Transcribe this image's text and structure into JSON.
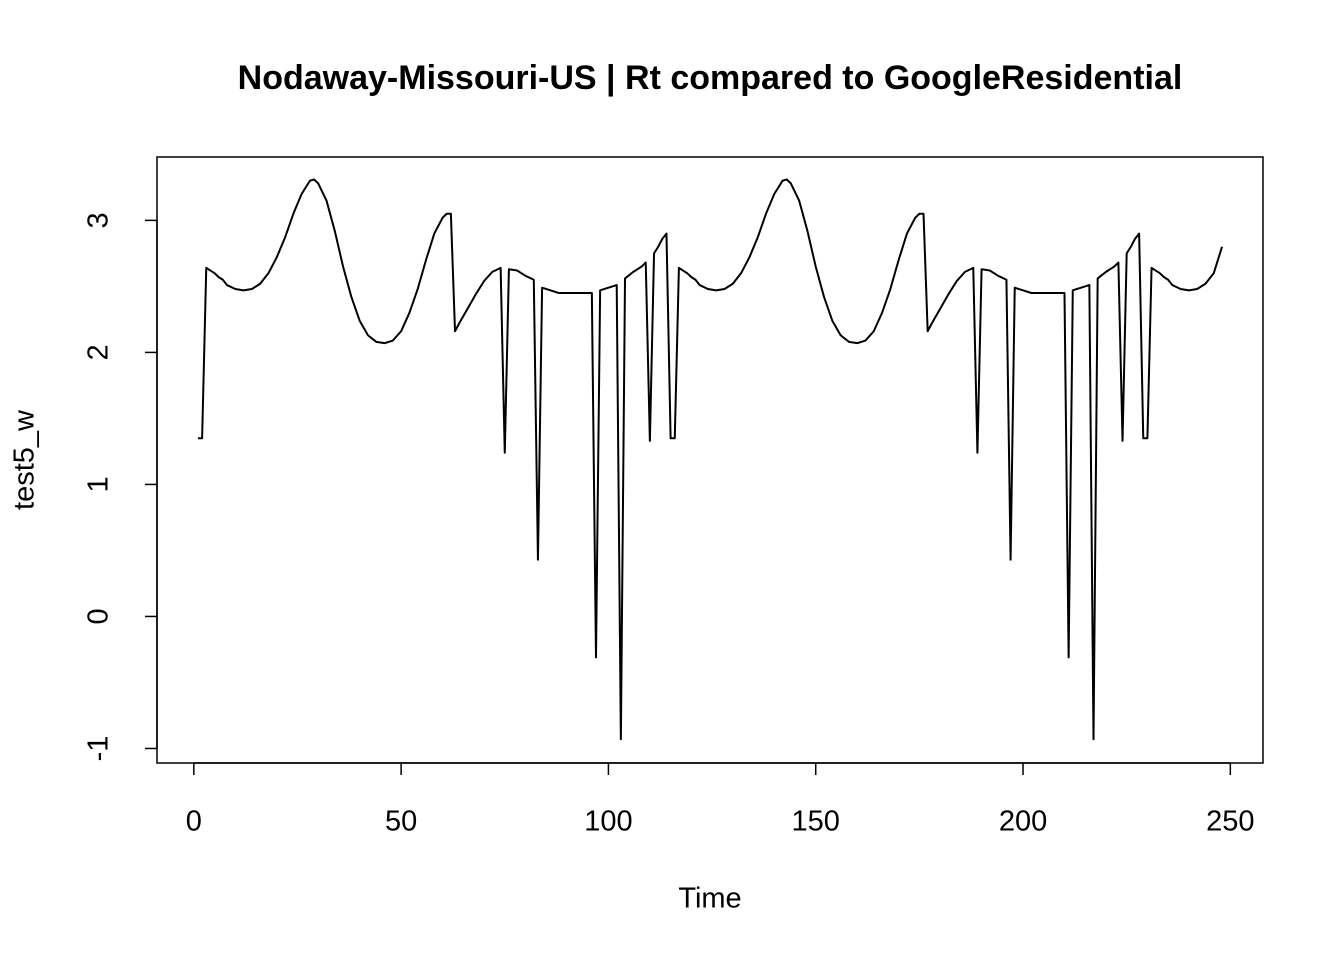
{
  "chart_data": {
    "type": "line",
    "title": "Nodaway-Missouri-US | Rt compared to GoogleResidential",
    "x_label": "Time",
    "y_label": "test5_w",
    "xlim": [
      -8.88,
      257.88
    ],
    "ylim": [
      -1.11,
      3.48
    ],
    "xticks": [
      0,
      50,
      100,
      150,
      200,
      250
    ],
    "yticks": [
      -1,
      0,
      1,
      2,
      3
    ],
    "series": [
      {
        "color": "#000000",
        "x": [
          1,
          2,
          3,
          4,
          5,
          6,
          7,
          8,
          10,
          12,
          14,
          16,
          18,
          20,
          22,
          24,
          26,
          28,
          29,
          30,
          32,
          34,
          36,
          38,
          40,
          42,
          44,
          46,
          48,
          50,
          52,
          54,
          56,
          58,
          60,
          61,
          62,
          63,
          64,
          66,
          68,
          70,
          72,
          74,
          75,
          76,
          78,
          80,
          82,
          83,
          84,
          86,
          88,
          92,
          96,
          97,
          98,
          100,
          102,
          103,
          104,
          106,
          108,
          109,
          110,
          111,
          112,
          113,
          114,
          115,
          116,
          117,
          118,
          119,
          120,
          121,
          122,
          124,
          126,
          128,
          130,
          132,
          134,
          136,
          138,
          140,
          142,
          143,
          144,
          146,
          148,
          150,
          152,
          154,
          156,
          158,
          160,
          162,
          164,
          166,
          168,
          170,
          172,
          174,
          175,
          176,
          177,
          178,
          180,
          182,
          184,
          186,
          188,
          189,
          190,
          192,
          194,
          196,
          197,
          198,
          200,
          202,
          206,
          210,
          211,
          212,
          214,
          216,
          217,
          218,
          220,
          222,
          223,
          224,
          225,
          226,
          227,
          228,
          229,
          230,
          231,
          232,
          233,
          234,
          235,
          236,
          238,
          240,
          242,
          244,
          246,
          248
        ],
        "values": [
          1.35,
          1.35,
          2.64,
          2.62,
          2.6,
          2.57,
          2.55,
          2.51,
          2.48,
          2.47,
          2.48,
          2.52,
          2.6,
          2.72,
          2.87,
          3.05,
          3.2,
          3.3,
          3.31,
          3.28,
          3.15,
          2.92,
          2.65,
          2.42,
          2.24,
          2.13,
          2.08,
          2.07,
          2.09,
          2.16,
          2.3,
          2.48,
          2.7,
          2.9,
          3.02,
          3.05,
          3.05,
          2.16,
          2.22,
          2.33,
          2.44,
          2.54,
          2.61,
          2.64,
          1.24,
          2.63,
          2.62,
          2.58,
          2.55,
          0.43,
          2.49,
          2.47,
          2.45,
          2.45,
          2.45,
          -0.31,
          2.47,
          2.49,
          2.51,
          -0.93,
          2.56,
          2.61,
          2.65,
          2.68,
          1.33,
          2.75,
          2.8,
          2.86,
          2.9,
          1.35,
          1.35,
          2.64,
          2.62,
          2.6,
          2.57,
          2.55,
          2.51,
          2.48,
          2.47,
          2.48,
          2.52,
          2.6,
          2.72,
          2.87,
          3.05,
          3.2,
          3.3,
          3.31,
          3.28,
          3.15,
          2.92,
          2.65,
          2.42,
          2.24,
          2.13,
          2.08,
          2.07,
          2.09,
          2.16,
          2.3,
          2.48,
          2.7,
          2.9,
          3.02,
          3.05,
          3.05,
          2.16,
          2.22,
          2.33,
          2.44,
          2.54,
          2.61,
          2.64,
          1.24,
          2.63,
          2.62,
          2.58,
          2.55,
          0.43,
          2.49,
          2.47,
          2.45,
          2.45,
          2.45,
          -0.31,
          2.47,
          2.49,
          2.51,
          -0.93,
          2.56,
          2.61,
          2.65,
          2.68,
          1.33,
          2.75,
          2.8,
          2.86,
          2.9,
          1.35,
          1.35,
          2.64,
          2.62,
          2.6,
          2.57,
          2.55,
          2.51,
          2.48,
          2.47,
          2.48,
          2.52,
          2.6,
          2.8
        ]
      }
    ]
  }
}
